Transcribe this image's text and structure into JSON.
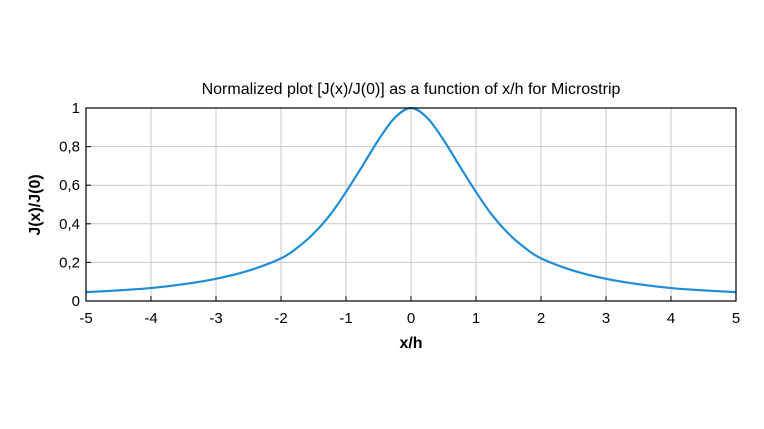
{
  "chart_data": {
    "type": "line",
    "title": "Normalized plot [J(x)/J(0)] as a function of x/h for Microstrip",
    "xlabel": "x/h",
    "ylabel": "J(x)/J(0)",
    "xlim": [
      -5,
      5
    ],
    "ylim": [
      0,
      1
    ],
    "grid": true,
    "x_ticks": [
      -5,
      -4,
      -3,
      -2,
      -1,
      0,
      1,
      2,
      3,
      4,
      5
    ],
    "x_tick_labels": [
      "-5",
      "-4",
      "-3",
      "-2",
      "-1",
      "0",
      "1",
      "2",
      "3",
      "4",
      "5"
    ],
    "y_ticks": [
      0,
      0.2,
      0.4,
      0.6,
      0.8,
      1
    ],
    "y_tick_labels": [
      "0",
      "0,2",
      "0,4",
      "0,6",
      "0,8",
      "1"
    ],
    "series": [
      {
        "color": "#1f8dd6",
        "x": [
          -5,
          -4.5,
          -4,
          -3.5,
          -3,
          -2.5,
          -2,
          -1.75,
          -1.5,
          -1.25,
          -1,
          -0.75,
          -0.5,
          -0.25,
          0,
          0.25,
          0.5,
          0.75,
          1,
          1.25,
          1.5,
          1.75,
          2,
          2.5,
          3,
          3.5,
          4,
          4.5,
          5
        ],
        "y": [
          0.046,
          0.055,
          0.067,
          0.087,
          0.115,
          0.157,
          0.221,
          0.276,
          0.349,
          0.444,
          0.565,
          0.698,
          0.835,
          0.949,
          1.0,
          0.949,
          0.835,
          0.698,
          0.565,
          0.444,
          0.349,
          0.276,
          0.221,
          0.157,
          0.115,
          0.087,
          0.067,
          0.055,
          0.046
        ]
      }
    ]
  }
}
